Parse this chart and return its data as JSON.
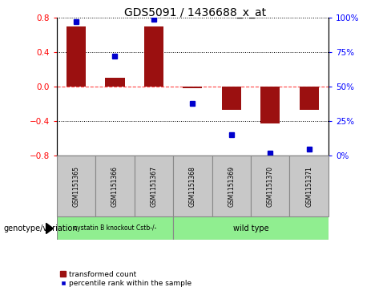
{
  "title": "GDS5091 / 1436688_x_at",
  "samples": [
    "GSM1151365",
    "GSM1151366",
    "GSM1151367",
    "GSM1151368",
    "GSM1151369",
    "GSM1151370",
    "GSM1151371"
  ],
  "bar_values": [
    0.7,
    0.1,
    0.7,
    -0.02,
    -0.27,
    -0.43,
    -0.27
  ],
  "percentile_values": [
    97,
    72,
    99,
    38,
    15,
    2,
    5
  ],
  "bar_color": "#9B1010",
  "dot_color": "#0000CD",
  "ylim": [
    -0.8,
    0.8
  ],
  "y2lim": [
    0,
    100
  ],
  "yticks": [
    -0.8,
    -0.4,
    0.0,
    0.4,
    0.8
  ],
  "y2ticks": [
    0,
    25,
    50,
    75,
    100
  ],
  "y2ticklabels": [
    "0%",
    "25%",
    "50%",
    "75%",
    "100%"
  ],
  "zero_line_color": "#FF4444",
  "grid_color": "#000000",
  "group1_label": "cystatin B knockout Cstb-/-",
  "group2_label": "wild type",
  "group_color": "#90EE90",
  "sample_box_color": "#C8C8C8",
  "legend_label_bar": "transformed count",
  "legend_label_dot": "percentile rank within the sample",
  "genotype_label": "genotype/variation",
  "bar_width": 0.5
}
